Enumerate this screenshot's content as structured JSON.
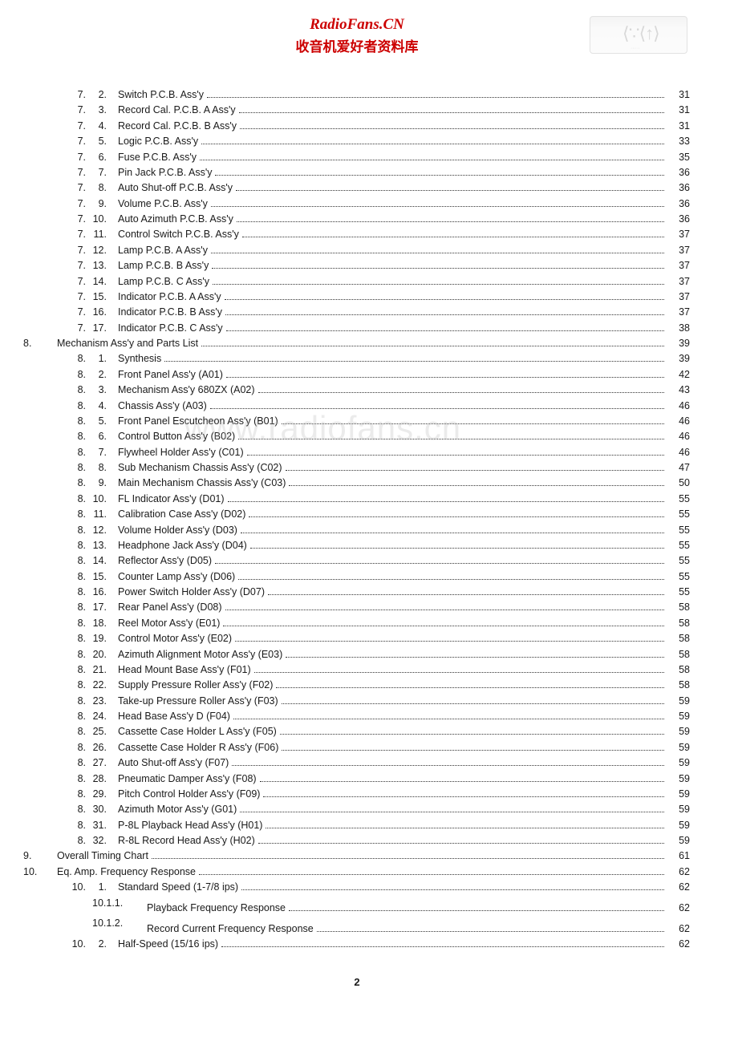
{
  "header": {
    "title": "RadioFans.CN",
    "subtitle": "收音机爱好者资料库"
  },
  "watermark": "www.radiofans.cn",
  "pageNumber": "2",
  "toc": [
    {
      "type": "item",
      "a": "7.",
      "b": "2.",
      "title": "Switch P.C.B. Ass'y",
      "page": "31"
    },
    {
      "type": "item",
      "a": "7.",
      "b": "3.",
      "title": "Record Cal. P.C.B. A Ass'y",
      "page": "31"
    },
    {
      "type": "item",
      "a": "7.",
      "b": "4.",
      "title": "Record Cal. P.C.B. B Ass'y",
      "page": "31"
    },
    {
      "type": "item",
      "a": "7.",
      "b": "5.",
      "title": "Logic P.C.B. Ass'y",
      "page": "33"
    },
    {
      "type": "item",
      "a": "7.",
      "b": "6.",
      "title": "Fuse P.C.B. Ass'y",
      "page": "35"
    },
    {
      "type": "item",
      "a": "7.",
      "b": "7.",
      "title": "Pin Jack P.C.B. Ass'y",
      "page": "36"
    },
    {
      "type": "item",
      "a": "7.",
      "b": "8.",
      "title": "Auto Shut-off P.C.B. Ass'y",
      "page": "36"
    },
    {
      "type": "item",
      "a": "7.",
      "b": "9.",
      "title": "Volume P.C.B. Ass'y",
      "page": "36"
    },
    {
      "type": "item",
      "a": "7.",
      "b": "10.",
      "title": "Auto Azimuth P.C.B. Ass'y",
      "page": "36"
    },
    {
      "type": "item",
      "a": "7.",
      "b": "11.",
      "title": "Control Switch P.C.B. Ass'y",
      "page": "37"
    },
    {
      "type": "item",
      "a": "7.",
      "b": "12.",
      "title": "Lamp P.C.B. A Ass'y",
      "page": "37"
    },
    {
      "type": "item",
      "a": "7.",
      "b": "13.",
      "title": "Lamp P.C.B. B Ass'y",
      "page": "37"
    },
    {
      "type": "item",
      "a": "7.",
      "b": "14.",
      "title": "Lamp P.C.B. C Ass'y",
      "page": "37"
    },
    {
      "type": "item",
      "a": "7.",
      "b": "15.",
      "title": "Indicator P.C.B. A Ass'y",
      "page": "37"
    },
    {
      "type": "item",
      "a": "7.",
      "b": "16.",
      "title": "Indicator P.C.B. B Ass'y",
      "page": "37"
    },
    {
      "type": "item",
      "a": "7.",
      "b": "17.",
      "title": "Indicator P.C.B. C Ass'y",
      "page": "38"
    },
    {
      "type": "chapter",
      "ch": "8.",
      "title": "Mechanism Ass'y and Parts List",
      "page": "39"
    },
    {
      "type": "item",
      "a": "8.",
      "b": "1.",
      "title": "Synthesis",
      "page": "39"
    },
    {
      "type": "item",
      "a": "8.",
      "b": "2.",
      "title": "Front Panel Ass'y (A01)",
      "page": "42"
    },
    {
      "type": "item",
      "a": "8.",
      "b": "3.",
      "title": "Mechanism Ass'y 680ZX (A02)",
      "page": "43"
    },
    {
      "type": "item",
      "a": "8.",
      "b": "4.",
      "title": "Chassis Ass'y (A03)",
      "page": "46"
    },
    {
      "type": "item",
      "a": "8.",
      "b": "5.",
      "title": "Front Panel Escutcheon Ass'y (B01)",
      "page": "46"
    },
    {
      "type": "item",
      "a": "8.",
      "b": "6.",
      "title": "Control Button Ass'y (B02)",
      "page": "46"
    },
    {
      "type": "item",
      "a": "8.",
      "b": "7.",
      "title": "Flywheel Holder Ass'y (C01)",
      "page": "46"
    },
    {
      "type": "item",
      "a": "8.",
      "b": "8.",
      "title": "Sub Mechanism Chassis Ass'y (C02)",
      "page": "47"
    },
    {
      "type": "item",
      "a": "8.",
      "b": "9.",
      "title": "Main Mechanism Chassis Ass'y (C03)",
      "page": "50"
    },
    {
      "type": "item",
      "a": "8.",
      "b": "10.",
      "title": "FL Indicator Ass'y (D01)",
      "page": "55"
    },
    {
      "type": "item",
      "a": "8.",
      "b": "11.",
      "title": "Calibration Case Ass'y (D02)",
      "page": "55"
    },
    {
      "type": "item",
      "a": "8.",
      "b": "12.",
      "title": "Volume Holder Ass'y (D03)",
      "page": "55"
    },
    {
      "type": "item",
      "a": "8.",
      "b": "13.",
      "title": "Headphone Jack Ass'y (D04)",
      "page": "55"
    },
    {
      "type": "item",
      "a": "8.",
      "b": "14.",
      "title": "Reflector Ass'y (D05)",
      "page": "55"
    },
    {
      "type": "item",
      "a": "8.",
      "b": "15.",
      "title": "Counter Lamp Ass'y (D06)",
      "page": "55"
    },
    {
      "type": "item",
      "a": "8.",
      "b": "16.",
      "title": "Power Switch Holder Ass'y (D07)",
      "page": "55"
    },
    {
      "type": "item",
      "a": "8.",
      "b": "17.",
      "title": "Rear Panel Ass'y (D08)",
      "page": "58"
    },
    {
      "type": "item",
      "a": "8.",
      "b": "18.",
      "title": "Reel Motor Ass'y (E01)",
      "page": "58"
    },
    {
      "type": "item",
      "a": "8.",
      "b": "19.",
      "title": "Control Motor Ass'y (E02)",
      "page": "58"
    },
    {
      "type": "item",
      "a": "8.",
      "b": "20.",
      "title": "Azimuth Alignment Motor Ass'y (E03)",
      "page": "58"
    },
    {
      "type": "item",
      "a": "8.",
      "b": "21.",
      "title": "Head Mount Base Ass'y (F01)",
      "page": "58"
    },
    {
      "type": "item",
      "a": "8.",
      "b": "22.",
      "title": "Supply Pressure Roller Ass'y (F02)",
      "page": "58"
    },
    {
      "type": "item",
      "a": "8.",
      "b": "23.",
      "title": "Take-up Pressure Roller Ass'y (F03)",
      "page": "59"
    },
    {
      "type": "item",
      "a": "8.",
      "b": "24.",
      "title": "Head Base Ass'y D (F04)",
      "page": "59"
    },
    {
      "type": "item",
      "a": "8.",
      "b": "25.",
      "title": "Cassette Case Holder L Ass'y (F05)",
      "page": "59"
    },
    {
      "type": "item",
      "a": "8.",
      "b": "26.",
      "title": "Cassette Case Holder R Ass'y (F06)",
      "page": "59"
    },
    {
      "type": "item",
      "a": "8.",
      "b": "27.",
      "title": "Auto Shut-off Ass'y (F07)",
      "page": "59"
    },
    {
      "type": "item",
      "a": "8.",
      "b": "28.",
      "title": "Pneumatic Damper Ass'y (F08)",
      "page": "59"
    },
    {
      "type": "item",
      "a": "8.",
      "b": "29.",
      "title": "Pitch Control Holder Ass'y (F09)",
      "page": "59"
    },
    {
      "type": "item",
      "a": "8.",
      "b": "30.",
      "title": "Azimuth Motor Ass'y (G01)",
      "page": "59"
    },
    {
      "type": "item",
      "a": "8.",
      "b": "31.",
      "title": "P-8L Playback Head Ass'y (H01)",
      "page": "59"
    },
    {
      "type": "item",
      "a": "8.",
      "b": "32.",
      "title": "R-8L Record Head Ass'y (H02)",
      "page": "59"
    },
    {
      "type": "chapter",
      "ch": "9.",
      "title": "Overall Timing Chart",
      "page": "61"
    },
    {
      "type": "chapter",
      "ch": "10.",
      "title": "Eq. Amp. Frequency Response",
      "page": "62"
    },
    {
      "type": "item",
      "a": "10.",
      "b": "1.",
      "title": "Standard Speed (1-7/8 ips)",
      "page": "62"
    },
    {
      "type": "sub",
      "sub": "10.1.1.",
      "title": "Playback Frequency Response",
      "page": "62"
    },
    {
      "type": "sub",
      "sub": "10.1.2.",
      "title": "Record Current Frequency Response",
      "page": "62"
    },
    {
      "type": "item",
      "a": "10.",
      "b": "2.",
      "title": "Half-Speed (15/16 ips)",
      "page": "62"
    }
  ]
}
